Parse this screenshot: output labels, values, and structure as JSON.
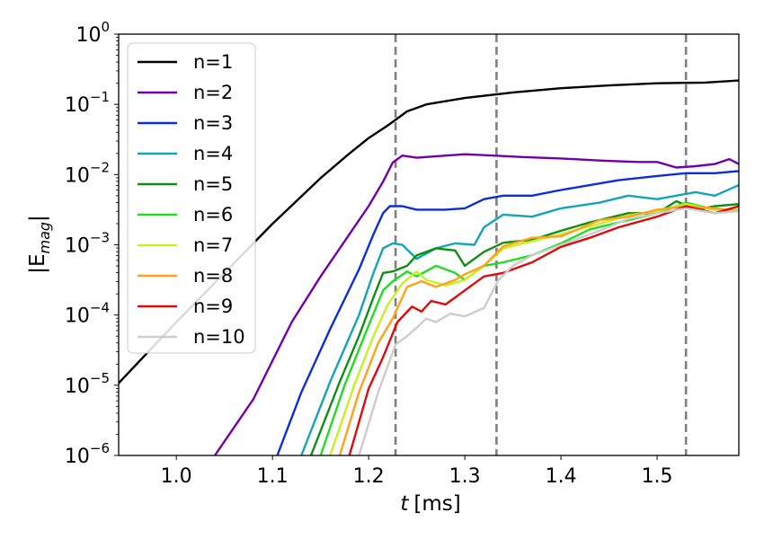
{
  "chart_data": {
    "type": "line",
    "xlabel_var": "t",
    "xlabel_unit": "[ms]",
    "ylabel_base": "|E",
    "ylabel_sub": "mag",
    "ylabel_end": "|",
    "xlim": [
      0.94,
      1.585
    ],
    "ylim": [
      1e-06,
      1
    ],
    "yscale": "log",
    "x_ticks": [
      {
        "value": 1.0,
        "label": "1.0"
      },
      {
        "value": 1.1,
        "label": "1.1"
      },
      {
        "value": 1.2,
        "label": "1.2"
      },
      {
        "value": 1.3,
        "label": "1.3"
      },
      {
        "value": 1.4,
        "label": "1.4"
      },
      {
        "value": 1.5,
        "label": "1.5"
      }
    ],
    "y_ticks": [
      {
        "exp": 0,
        "base": "10",
        "sup": "0"
      },
      {
        "exp": -1,
        "base": "10",
        "sup": "−1"
      },
      {
        "exp": -2,
        "base": "10",
        "sup": "−2"
      },
      {
        "exp": -3,
        "base": "10",
        "sup": "−3"
      },
      {
        "exp": -4,
        "base": "10",
        "sup": "−4"
      },
      {
        "exp": -5,
        "base": "10",
        "sup": "−5"
      },
      {
        "exp": -6,
        "base": "10",
        "sup": "−6"
      }
    ],
    "vlines": [
      1.228,
      1.333,
      1.53
    ],
    "vline_color": "#808080",
    "legend_position": "top-left",
    "series": [
      {
        "name": "n=1",
        "color": "#000000",
        "points": [
          [
            0.94,
            -4.97
          ],
          [
            1.0,
            -4.1
          ],
          [
            1.05,
            -3.4
          ],
          [
            1.1,
            -2.7
          ],
          [
            1.15,
            -2.05
          ],
          [
            1.18,
            -1.7
          ],
          [
            1.2,
            -1.48
          ],
          [
            1.22,
            -1.3
          ],
          [
            1.24,
            -1.1
          ],
          [
            1.26,
            -1.0
          ],
          [
            1.3,
            -0.91
          ],
          [
            1.35,
            -0.83
          ],
          [
            1.4,
            -0.77
          ],
          [
            1.45,
            -0.73
          ],
          [
            1.5,
            -0.7
          ],
          [
            1.55,
            -0.69
          ],
          [
            1.585,
            -0.66
          ]
        ]
      },
      {
        "name": "n=2",
        "color": "#7200a8",
        "points": [
          [
            1.04,
            -6.0
          ],
          [
            1.08,
            -5.2
          ],
          [
            1.12,
            -4.1
          ],
          [
            1.15,
            -3.45
          ],
          [
            1.18,
            -2.85
          ],
          [
            1.2,
            -2.45
          ],
          [
            1.215,
            -2.1
          ],
          [
            1.225,
            -1.83
          ],
          [
            1.235,
            -1.73
          ],
          [
            1.25,
            -1.76
          ],
          [
            1.28,
            -1.73
          ],
          [
            1.3,
            -1.71
          ],
          [
            1.33,
            -1.73
          ],
          [
            1.36,
            -1.75
          ],
          [
            1.4,
            -1.77
          ],
          [
            1.44,
            -1.8
          ],
          [
            1.48,
            -1.82
          ],
          [
            1.5,
            -1.82
          ],
          [
            1.52,
            -1.9
          ],
          [
            1.54,
            -1.88
          ],
          [
            1.56,
            -1.85
          ],
          [
            1.575,
            -1.78
          ],
          [
            1.585,
            -1.85
          ]
        ]
      },
      {
        "name": "n=3",
        "color": "#0a2fd8",
        "points": [
          [
            1.105,
            -6.0
          ],
          [
            1.13,
            -5.1
          ],
          [
            1.16,
            -4.2
          ],
          [
            1.19,
            -3.35
          ],
          [
            1.205,
            -2.85
          ],
          [
            1.215,
            -2.55
          ],
          [
            1.222,
            -2.45
          ],
          [
            1.235,
            -2.45
          ],
          [
            1.25,
            -2.5
          ],
          [
            1.28,
            -2.5
          ],
          [
            1.3,
            -2.48
          ],
          [
            1.32,
            -2.35
          ],
          [
            1.34,
            -2.3
          ],
          [
            1.37,
            -2.3
          ],
          [
            1.4,
            -2.22
          ],
          [
            1.43,
            -2.15
          ],
          [
            1.46,
            -2.08
          ],
          [
            1.5,
            -2.02
          ],
          [
            1.53,
            -1.98
          ],
          [
            1.56,
            -1.98
          ],
          [
            1.585,
            -1.95
          ]
        ]
      },
      {
        "name": "n=4",
        "color": "#13a4b8",
        "points": [
          [
            1.13,
            -6.0
          ],
          [
            1.16,
            -4.95
          ],
          [
            1.19,
            -4.0
          ],
          [
            1.205,
            -3.4
          ],
          [
            1.215,
            -3.05
          ],
          [
            1.225,
            -2.98
          ],
          [
            1.235,
            -3.0
          ],
          [
            1.25,
            -3.2
          ],
          [
            1.27,
            -3.05
          ],
          [
            1.29,
            -2.98
          ],
          [
            1.31,
            -3.0
          ],
          [
            1.32,
            -2.75
          ],
          [
            1.34,
            -2.57
          ],
          [
            1.37,
            -2.6
          ],
          [
            1.4,
            -2.48
          ],
          [
            1.44,
            -2.4
          ],
          [
            1.47,
            -2.3
          ],
          [
            1.5,
            -2.35
          ],
          [
            1.52,
            -2.3
          ],
          [
            1.54,
            -2.25
          ],
          [
            1.56,
            -2.3
          ],
          [
            1.585,
            -2.15
          ]
        ]
      },
      {
        "name": "n=5",
        "color": "#0f8f12",
        "points": [
          [
            1.14,
            -6.0
          ],
          [
            1.17,
            -4.95
          ],
          [
            1.19,
            -4.3
          ],
          [
            1.205,
            -3.75
          ],
          [
            1.215,
            -3.4
          ],
          [
            1.225,
            -3.38
          ],
          [
            1.24,
            -3.3
          ],
          [
            1.25,
            -3.15
          ],
          [
            1.27,
            -3.05
          ],
          [
            1.29,
            -3.08
          ],
          [
            1.3,
            -3.3
          ],
          [
            1.32,
            -3.1
          ],
          [
            1.34,
            -2.97
          ],
          [
            1.37,
            -2.93
          ],
          [
            1.4,
            -2.8
          ],
          [
            1.43,
            -2.68
          ],
          [
            1.47,
            -2.55
          ],
          [
            1.5,
            -2.55
          ],
          [
            1.52,
            -2.38
          ],
          [
            1.54,
            -2.5
          ],
          [
            1.56,
            -2.45
          ],
          [
            1.585,
            -2.42
          ]
        ]
      },
      {
        "name": "n=6",
        "color": "#22dc22",
        "points": [
          [
            1.15,
            -6.0
          ],
          [
            1.175,
            -5.0
          ],
          [
            1.2,
            -4.15
          ],
          [
            1.215,
            -3.65
          ],
          [
            1.225,
            -3.52
          ],
          [
            1.24,
            -3.38
          ],
          [
            1.25,
            -3.45
          ],
          [
            1.27,
            -3.3
          ],
          [
            1.29,
            -3.4
          ],
          [
            1.3,
            -3.5
          ],
          [
            1.32,
            -3.3
          ],
          [
            1.34,
            -3.25
          ],
          [
            1.37,
            -3.15
          ],
          [
            1.4,
            -2.98
          ],
          [
            1.43,
            -2.78
          ],
          [
            1.47,
            -2.65
          ],
          [
            1.5,
            -2.55
          ],
          [
            1.53,
            -2.4
          ],
          [
            1.56,
            -2.5
          ],
          [
            1.585,
            -2.5
          ]
        ]
      },
      {
        "name": "n=7",
        "color": "#c8f020",
        "points": [
          [
            1.16,
            -6.0
          ],
          [
            1.185,
            -5.0
          ],
          [
            1.205,
            -4.3
          ],
          [
            1.22,
            -3.85
          ],
          [
            1.235,
            -3.55
          ],
          [
            1.25,
            -3.38
          ],
          [
            1.26,
            -3.5
          ],
          [
            1.28,
            -3.58
          ],
          [
            1.3,
            -3.5
          ],
          [
            1.32,
            -3.3
          ],
          [
            1.34,
            -3.05
          ],
          [
            1.37,
            -2.95
          ],
          [
            1.4,
            -2.85
          ],
          [
            1.44,
            -2.7
          ],
          [
            1.47,
            -2.58
          ],
          [
            1.5,
            -2.52
          ],
          [
            1.53,
            -2.42
          ],
          [
            1.56,
            -2.5
          ],
          [
            1.585,
            -2.5
          ]
        ]
      },
      {
        "name": "n=8",
        "color": "#ffa21a",
        "points": [
          [
            1.17,
            -6.0
          ],
          [
            1.19,
            -5.1
          ],
          [
            1.21,
            -4.4
          ],
          [
            1.225,
            -4.05
          ],
          [
            1.24,
            -3.6
          ],
          [
            1.255,
            -3.52
          ],
          [
            1.27,
            -3.6
          ],
          [
            1.29,
            -3.5
          ],
          [
            1.3,
            -3.42
          ],
          [
            1.32,
            -3.3
          ],
          [
            1.34,
            -3.02
          ],
          [
            1.37,
            -2.9
          ],
          [
            1.4,
            -2.88
          ],
          [
            1.44,
            -2.65
          ],
          [
            1.47,
            -2.6
          ],
          [
            1.5,
            -2.5
          ],
          [
            1.53,
            -2.45
          ],
          [
            1.56,
            -2.48
          ],
          [
            1.585,
            -2.52
          ]
        ]
      },
      {
        "name": "n=9",
        "color": "#e00a0a",
        "points": [
          [
            1.18,
            -6.0
          ],
          [
            1.2,
            -5.05
          ],
          [
            1.215,
            -4.6
          ],
          [
            1.23,
            -4.1
          ],
          [
            1.245,
            -3.88
          ],
          [
            1.255,
            -3.95
          ],
          [
            1.265,
            -3.8
          ],
          [
            1.28,
            -3.85
          ],
          [
            1.3,
            -3.65
          ],
          [
            1.32,
            -3.45
          ],
          [
            1.34,
            -3.4
          ],
          [
            1.37,
            -3.25
          ],
          [
            1.4,
            -3.03
          ],
          [
            1.43,
            -2.9
          ],
          [
            1.46,
            -2.75
          ],
          [
            1.5,
            -2.6
          ],
          [
            1.53,
            -2.45
          ],
          [
            1.56,
            -2.55
          ],
          [
            1.585,
            -2.45
          ]
        ]
      },
      {
        "name": "n=10",
        "color": "#cccccc",
        "points": [
          [
            1.19,
            -6.0
          ],
          [
            1.21,
            -5.1
          ],
          [
            1.228,
            -4.42
          ],
          [
            1.24,
            -4.3
          ],
          [
            1.25,
            -4.18
          ],
          [
            1.26,
            -4.05
          ],
          [
            1.27,
            -4.1
          ],
          [
            1.285,
            -3.98
          ],
          [
            1.3,
            -4.02
          ],
          [
            1.32,
            -3.9
          ],
          [
            1.335,
            -3.5
          ],
          [
            1.35,
            -3.3
          ],
          [
            1.37,
            -3.15
          ],
          [
            1.4,
            -3.0
          ],
          [
            1.44,
            -2.8
          ],
          [
            1.47,
            -2.63
          ],
          [
            1.5,
            -2.55
          ],
          [
            1.53,
            -2.48
          ],
          [
            1.56,
            -2.55
          ],
          [
            1.585,
            -2.52
          ]
        ]
      }
    ]
  }
}
